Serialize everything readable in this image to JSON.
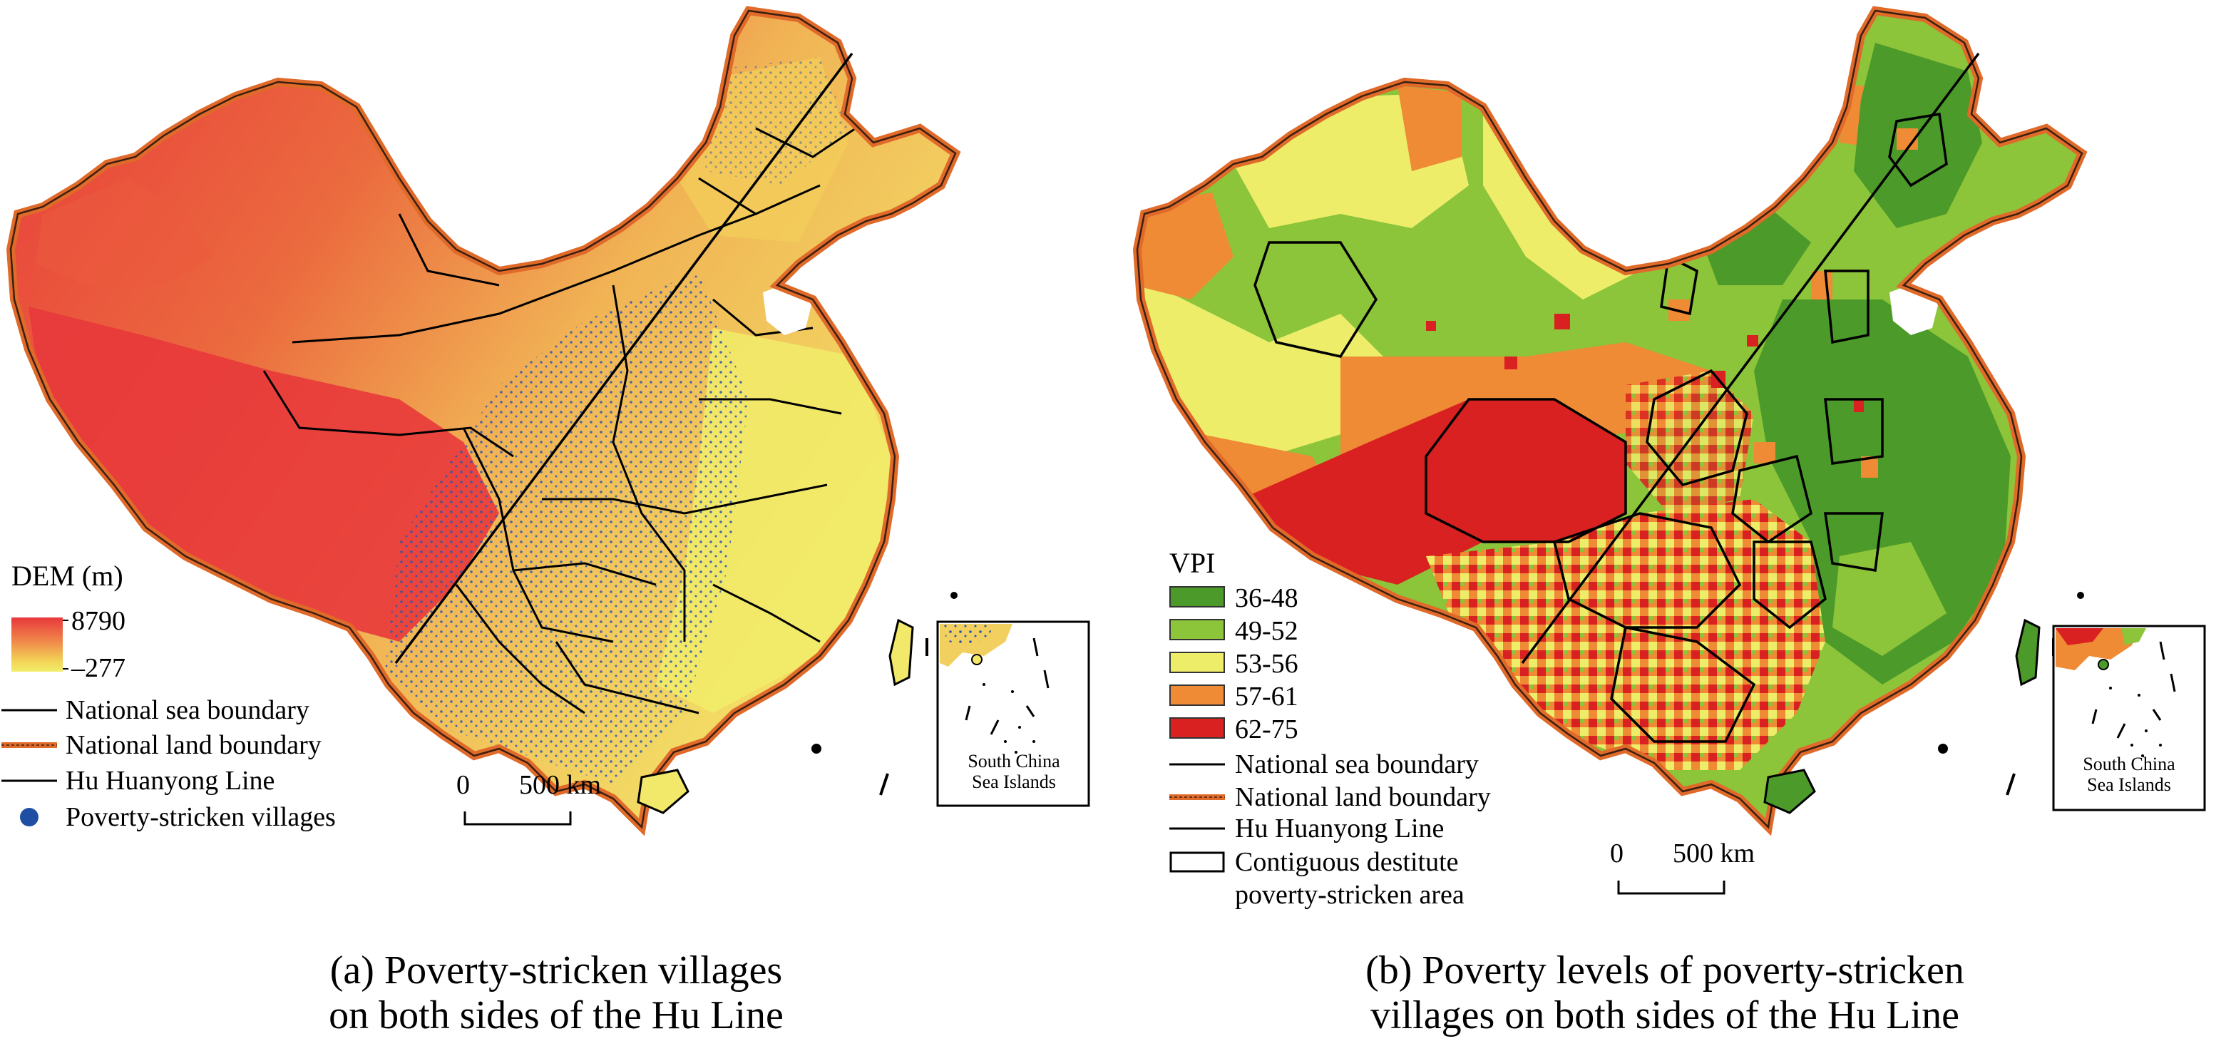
{
  "panel_a": {
    "legend": {
      "title": "DEM (m)",
      "max": "8790",
      "min": "–277",
      "gradient_colors": [
        "#e8383b",
        "#f08a4a",
        "#f3d356",
        "#f2ee6a"
      ],
      "items": [
        {
          "label": "National sea boundary",
          "symbol": "line",
          "color": "#000000"
        },
        {
          "label": "National land boundary",
          "symbol": "land-boundary",
          "color": "#e06a2a"
        },
        {
          "label": "Hu Huanyong Line",
          "symbol": "line",
          "color": "#000000"
        },
        {
          "label": "Poverty-stricken villages",
          "symbol": "dot",
          "color": "#1f4fa3"
        }
      ]
    },
    "scale": {
      "start": "0",
      "end": "500 km"
    },
    "inset_label_line1": "South China",
    "inset_label_line2": "Sea Islands",
    "caption_line1": "(a) Poverty-stricken villages",
    "caption_line2": "on both sides of the Hu Line",
    "colors": {
      "high": "#e8383b",
      "mid": "#f0a04c",
      "low": "#f2e86a",
      "village": "#2a55b0"
    }
  },
  "panel_b": {
    "legend": {
      "title": "VPI",
      "classes": [
        {
          "label": "36-48",
          "color": "#4c9a2a"
        },
        {
          "label": "49-52",
          "color": "#8cc43a"
        },
        {
          "label": "53-56",
          "color": "#eded6a"
        },
        {
          "label": "57-61",
          "color": "#ef8a35"
        },
        {
          "label": "62-75",
          "color": "#d92121"
        }
      ],
      "items": [
        {
          "label": "National sea boundary",
          "symbol": "line",
          "color": "#000000"
        },
        {
          "label": "National land boundary",
          "symbol": "land-boundary",
          "color": "#e06a2a"
        },
        {
          "label": "Hu Huanyong Line",
          "symbol": "line",
          "color": "#000000"
        },
        {
          "label": "Contiguous destitute",
          "label_line2": "poverty-stricken area",
          "symbol": "box",
          "color": "#000000"
        }
      ]
    },
    "scale": {
      "start": "0",
      "end": "500 km"
    },
    "inset_label_line1": "South China",
    "inset_label_line2": "Sea Islands",
    "caption_line1": "(b)  Poverty levels of poverty-stricken",
    "caption_line2": "villages on both sides of the Hu Line"
  }
}
